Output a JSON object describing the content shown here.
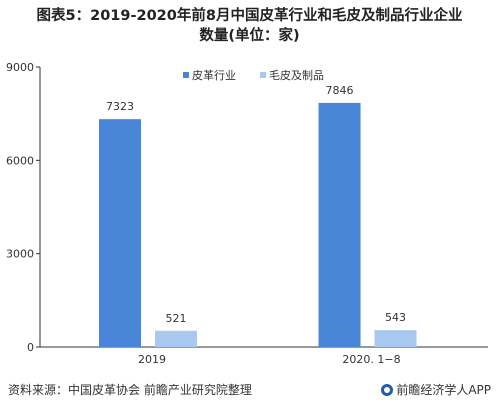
{
  "title_line1": "图表5：2019-2020年前8月中国皮革行业和毛皮及制品行业企业",
  "title_line2": "数量(单位：家)",
  "source": "资料来源：中国皮革协会 前瞻产业研究院整理",
  "brand": "前瞻经济学人APP",
  "colors": {
    "leather": "#4a86d8",
    "fur": "#a9c8ef",
    "axis": "#333333"
  },
  "chart_data": {
    "type": "bar",
    "categories": [
      "2019",
      "2020. 1−8"
    ],
    "series": [
      {
        "name": "皮革行业",
        "values": [
          7323,
          7846
        ]
      },
      {
        "name": "毛皮及制品",
        "values": [
          521,
          543
        ]
      }
    ],
    "yticks": [
      "0",
      "3000",
      "6000",
      "9000"
    ],
    "ylim": [
      0,
      9000
    ],
    "legend": "top-right"
  }
}
